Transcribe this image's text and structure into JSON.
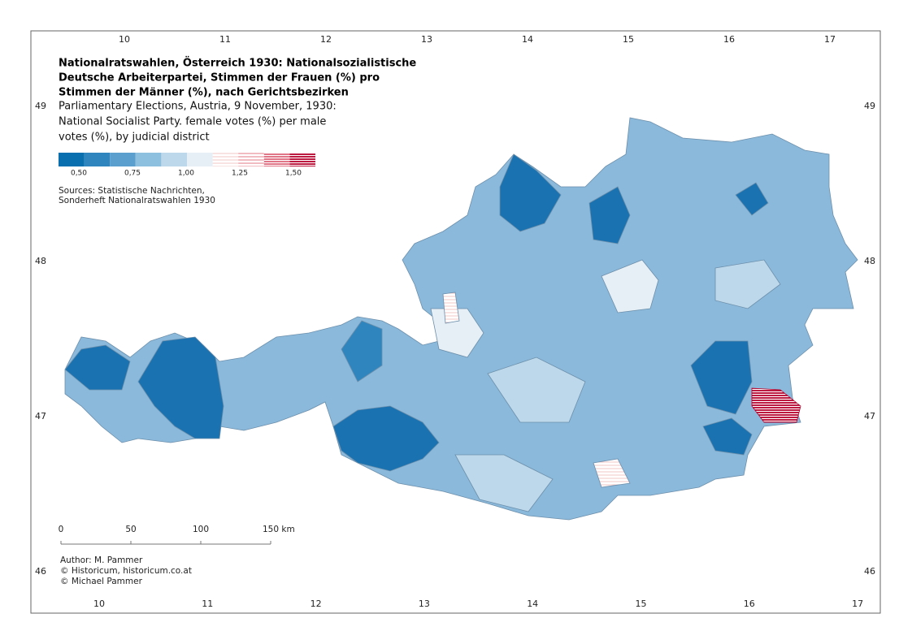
{
  "title_lines": [
    "Nationalratswahlen, Österreich 1930: Nationalsozialistische",
    "Deutsche Arbeiterpartei, Stimmen der Frauen (%) pro",
    "Stimmen der Männer (%), nach Gerichtsbezirken"
  ],
  "subtitle_lines": [
    "Parliamentary Elections, Austria, 9 November, 1930:",
    "National Socialist Party. female votes (%) per male",
    "votes (%), by judicial district"
  ],
  "legend": {
    "labels": [
      "0,50",
      "0,75",
      "1,00",
      "1,25",
      "1,50"
    ]
  },
  "sources": [
    "Sources: Statistische Nachrichten,",
    "Sonderheft Nationalratswahlen 1930"
  ],
  "scale_bar": {
    "labels": [
      "0",
      "50",
      "100",
      "150 km"
    ]
  },
  "credits": [
    "Author: M. Pammer",
    "© Historicum, historicum.co.at",
    "© Michael Pammer"
  ],
  "graticule": {
    "top": [
      "10",
      "11",
      "12",
      "13",
      "14",
      "15",
      "16",
      "17"
    ],
    "bottom": [
      "10",
      "11",
      "12",
      "13",
      "14",
      "15",
      "16",
      "17"
    ],
    "left": [
      "49",
      "48",
      "47",
      "46"
    ],
    "right": [
      "49",
      "48",
      "47",
      "46"
    ]
  }
}
